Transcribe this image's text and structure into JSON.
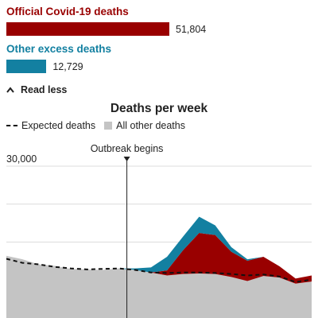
{
  "summary": {
    "covid": {
      "label": "Official Covid-19 deaths",
      "value_label": "51,804",
      "value": 51804,
      "color": "#990000"
    },
    "excess": {
      "label": "Other excess deaths",
      "value_label": "12,729",
      "value": 12729,
      "color": "#1380a1"
    }
  },
  "toggle": {
    "label": "Read less",
    "icon": "chevron-up-icon"
  },
  "chart_data": {
    "type": "area",
    "title": "Deaths per week",
    "legend": [
      {
        "label": "Expected deaths",
        "style": "dashed-line",
        "color": "#111111"
      },
      {
        "label": "All other deaths",
        "style": "filled-area",
        "color": "#c4c4c4"
      }
    ],
    "y_ticks": [
      {
        "value": 30000,
        "label": "30,000"
      }
    ],
    "ylim": [
      0,
      30000
    ],
    "grid": true,
    "annotation": {
      "label": "Outbreak begins",
      "x": 7.5
    },
    "x": [
      0,
      1,
      2,
      3,
      4,
      5,
      6,
      7,
      8,
      9,
      10,
      11,
      12,
      13,
      14,
      15,
      16,
      17,
      18,
      19
    ],
    "series": [
      {
        "name": "All other deaths",
        "color": "#c4c4c4",
        "values": [
          12300,
          11600,
          10600,
          10300,
          9700,
          9600,
          9500,
          9800,
          9500,
          9000,
          8400,
          8700,
          8800,
          8700,
          8100,
          7300,
          8300,
          8000,
          6800,
          7200
        ]
      },
      {
        "name": "Official Covid-19 deaths",
        "color": "#990000",
        "values": [
          0,
          0,
          0,
          0,
          0,
          0,
          0,
          0,
          0,
          0,
          1000,
          4700,
          8000,
          7700,
          5000,
          4000,
          3800,
          2200,
          1000,
          1200
        ]
      },
      {
        "name": "Other excess deaths",
        "color": "#1380a1",
        "values": [
          0,
          0,
          0,
          0,
          0,
          0,
          0,
          0,
          300,
          1000,
          2700,
          2700,
          3200,
          1900,
          900,
          300,
          0,
          0,
          0,
          0
        ]
      },
      {
        "name": "Expected deaths",
        "color": "#111111",
        "style": "dashed",
        "values": [
          11700,
          10900,
          10600,
          10100,
          9800,
          9600,
          9700,
          9800,
          9500,
          9000,
          8900,
          9000,
          9000,
          8900,
          8700,
          8400,
          8600,
          8200,
          7100,
          7600
        ]
      }
    ]
  }
}
